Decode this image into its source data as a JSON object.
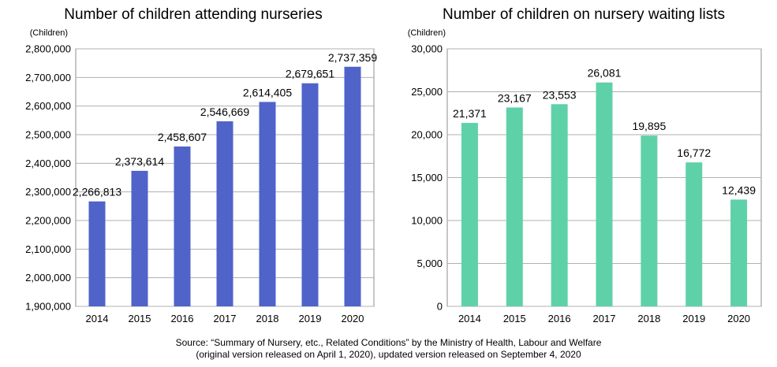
{
  "chart_data": [
    {
      "type": "bar",
      "title": "Number of children attending nurseries",
      "unit_label": "(Children)",
      "categories": [
        "2014",
        "2015",
        "2016",
        "2017",
        "2018",
        "2019",
        "2020"
      ],
      "values": [
        2266813,
        2373614,
        2458607,
        2546669,
        2614405,
        2679651,
        2737359
      ],
      "value_labels": [
        "2,266,813",
        "2,373,614",
        "2,458,607",
        "2,546,669",
        "2,614,405",
        "2,679,651",
        "2,737,359"
      ],
      "ylim": [
        1900000,
        2800000
      ],
      "yticks": [
        1900000,
        2000000,
        2100000,
        2200000,
        2300000,
        2400000,
        2500000,
        2600000,
        2700000,
        2800000
      ],
      "ytick_labels": [
        "1,900,000",
        "2,000,000",
        "2,100,000",
        "2,200,000",
        "2,300,000",
        "2,400,000",
        "2,500,000",
        "2,600,000",
        "2,700,000",
        "2,800,000"
      ],
      "bar_color": "#4f63c9",
      "grid": true,
      "legend": "none"
    },
    {
      "type": "bar",
      "title": "Number of children on nursery waiting lists",
      "unit_label": "(Children)",
      "categories": [
        "2014",
        "2015",
        "2016",
        "2017",
        "2018",
        "2019",
        "2020"
      ],
      "values": [
        21371,
        23167,
        23553,
        26081,
        19895,
        16772,
        12439
      ],
      "value_labels": [
        "21,371",
        "23,167",
        "23,553",
        "26,081",
        "19,895",
        "16,772",
        "12,439"
      ],
      "ylim": [
        0,
        30000
      ],
      "yticks": [
        0,
        5000,
        10000,
        15000,
        20000,
        25000,
        30000
      ],
      "ytick_labels": [
        "0",
        "5,000",
        "10,000",
        "15,000",
        "20,000",
        "25,000",
        "30,000"
      ],
      "bar_color": "#5fd1a8",
      "grid": true,
      "legend": "none"
    }
  ],
  "source": {
    "line1": "Source: “Summary of Nursery, etc., Related Conditions” by the Ministry of Health, Labour and Welfare",
    "line2": "(original version released on April 1, 2020), updated version released on September 4, 2020"
  }
}
